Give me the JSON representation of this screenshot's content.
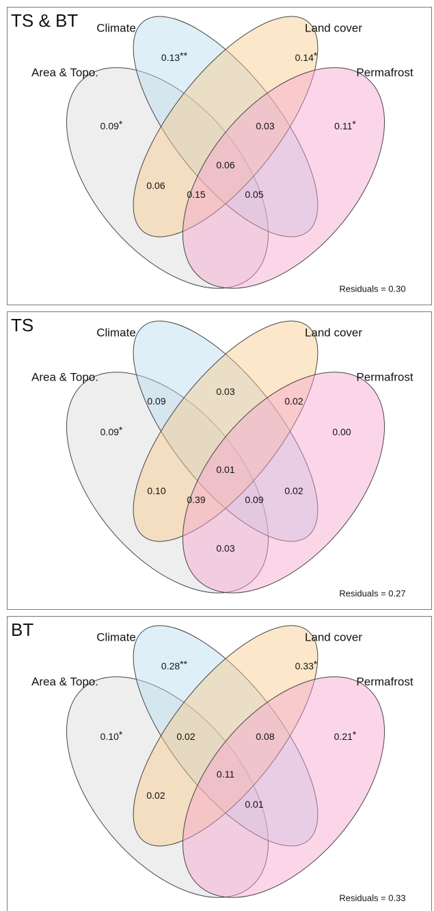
{
  "set_labels": [
    "Area & Topo.",
    "Climate",
    "Land cover",
    "Permafrost"
  ],
  "panels": [
    {
      "title": "TS & BT",
      "residuals": "Residuals = 0.30",
      "regions": [
        {
          "text": "0.13",
          "sig": "**"
        },
        {
          "text": "0.14",
          "sig": "*"
        },
        {
          "text": "0.09",
          "sig": "*"
        },
        {
          "text": "0.03"
        },
        {
          "text": "0.11",
          "sig": "*"
        },
        {
          "text": "0.06"
        },
        {
          "text": "0.06"
        },
        {
          "text": "0.15"
        },
        {
          "text": "0.05"
        }
      ]
    },
    {
      "title": "TS",
      "residuals": "Residuals = 0.27",
      "regions": [
        {
          "text": "0.09"
        },
        {
          "text": "0.03"
        },
        {
          "text": "0.02"
        },
        {
          "text": "0.09",
          "sig": "*"
        },
        {
          "text": "0.00"
        },
        {
          "text": "0.01"
        },
        {
          "text": "0.10"
        },
        {
          "text": "0.39"
        },
        {
          "text": "0.09"
        },
        {
          "text": "0.02"
        },
        {
          "text": "0.03"
        }
      ]
    },
    {
      "title": "BT",
      "residuals": "Residuals = 0.33",
      "regions": [
        {
          "text": "0.28",
          "sig": "**"
        },
        {
          "text": "0.33",
          "sig": "*"
        },
        {
          "text": "0.10",
          "sig": "*"
        },
        {
          "text": "0.02"
        },
        {
          "text": "0.08"
        },
        {
          "text": "0.21",
          "sig": "*"
        },
        {
          "text": "0.11"
        },
        {
          "text": "0.02"
        },
        {
          "text": "0.01"
        }
      ]
    }
  ]
}
